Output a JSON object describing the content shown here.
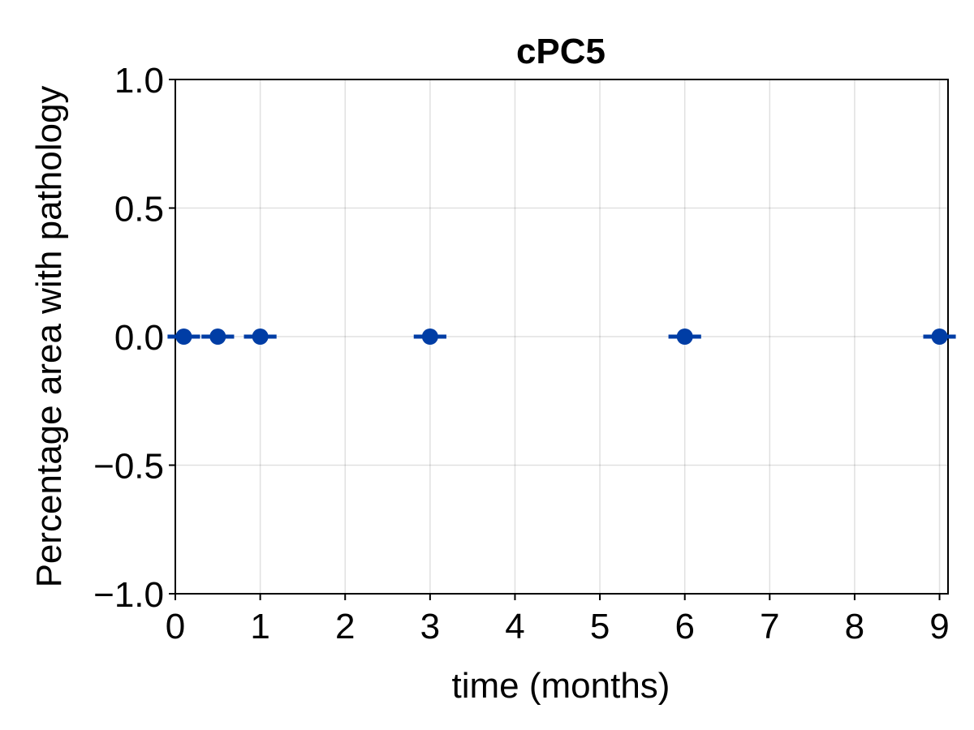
{
  "chart_data": {
    "type": "scatter",
    "title": "cPC5",
    "xlabel": "time (months)",
    "ylabel": "Percentage area with pathology",
    "xlim": [
      0,
      9.1
    ],
    "ylim": [
      -1.0,
      1.0
    ],
    "xticks": [
      0,
      1,
      2,
      3,
      4,
      5,
      6,
      7,
      8,
      9
    ],
    "xtick_labels": [
      "0",
      "1",
      "2",
      "3",
      "4",
      "5",
      "6",
      "7",
      "8",
      "9"
    ],
    "yticks": [
      -1.0,
      -0.5,
      0.0,
      0.5,
      1.0
    ],
    "ytick_labels": [
      "−1.0",
      "−0.5",
      "0.0",
      "0.5",
      "1.0"
    ],
    "grid": true,
    "color": "#003DA5",
    "series": [
      {
        "points": [
          {
            "x": 0.1,
            "y": 0.0,
            "err": 0.0
          },
          {
            "x": 0.5,
            "y": 0.0,
            "err": 0.0
          },
          {
            "x": 1.0,
            "y": 0.0,
            "err": 0.0
          },
          {
            "x": 3.0,
            "y": 0.0,
            "err": 0.0
          },
          {
            "x": 6.0,
            "y": 0.0,
            "err": 0.0
          },
          {
            "x": 9.0,
            "y": 0.0,
            "err": 0.0
          }
        ]
      }
    ]
  }
}
